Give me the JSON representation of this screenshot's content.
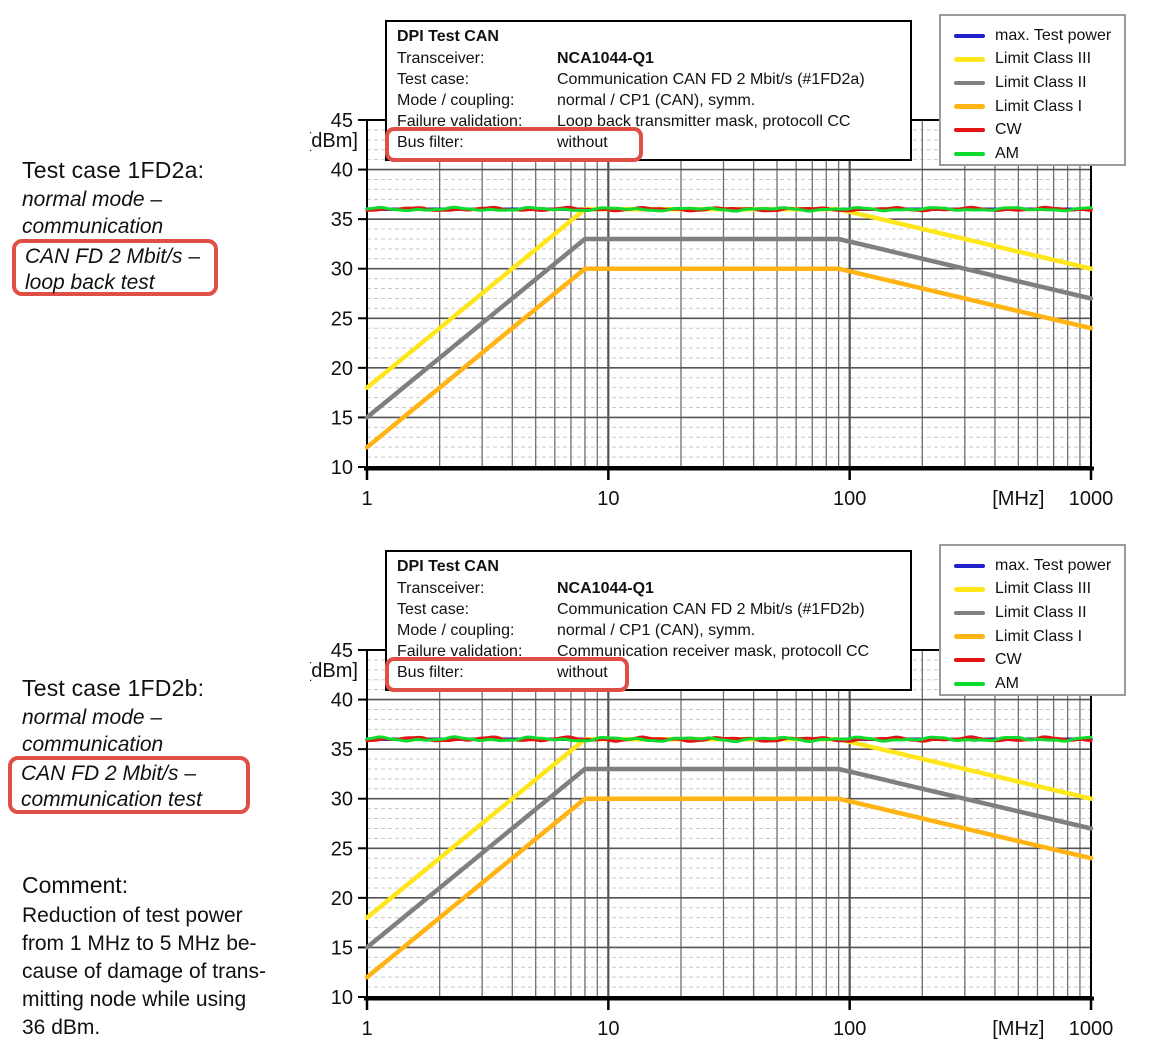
{
  "colors": {
    "highlight_box": "#e04f46",
    "info_border": "#000000",
    "legend_border": "#9b9b9b"
  },
  "annotations": {
    "block1": {
      "title": "Test case 1FD2a:",
      "lines": [
        "normal mode –",
        "communication"
      ],
      "boxed_lines": [
        "CAN FD 2 Mbit/s –",
        "loop back test"
      ]
    },
    "block2": {
      "title": "Test case 1FD2b:",
      "lines": [
        "normal mode –",
        "communication"
      ],
      "boxed_lines": [
        "CAN FD 2 Mbit/s –",
        "communication test"
      ]
    },
    "comment": {
      "title": "Comment:",
      "lines": [
        "Reduction of test power",
        "from 1 MHz to 5 MHz be-",
        "cause of damage of trans-",
        "mitting node while using",
        "36 dBm."
      ]
    }
  },
  "info_boxes": [
    {
      "title": "DPI Test CAN",
      "rows": [
        {
          "label": "Transceiver:",
          "value": "NCA1044-Q1"
        },
        {
          "label": "Test case:",
          "value": "Communication CAN FD 2 Mbit/s (#1FD2a)"
        },
        {
          "label": "Mode / coupling:",
          "value": "normal / CP1 (CAN), symm."
        },
        {
          "label": "Failure validation:",
          "value": "Loop back transmitter mask, protocoll CC"
        },
        {
          "label": "Bus filter:",
          "value": "without"
        }
      ]
    },
    {
      "title": "DPI Test CAN",
      "rows": [
        {
          "label": "Transceiver:",
          "value": "NCA1044-Q1"
        },
        {
          "label": "Test case:",
          "value": "Communication CAN FD 2 Mbit/s (#1FD2b)"
        },
        {
          "label": "Mode / coupling:",
          "value": "normal / CP1 (CAN), symm."
        },
        {
          "label": "Failure validation:",
          "value": "Communication receiver mask, protocoll CC"
        },
        {
          "label": "Bus filter:",
          "value": "without"
        }
      ]
    }
  ],
  "chart_data": [
    {
      "type": "line",
      "title": "DPI Test CAN – Test case 1FD2a (loop back test)",
      "x_axis": {
        "scale": "log",
        "min": 1,
        "max": 1000,
        "ticks": [
          1,
          10,
          100,
          1000
        ],
        "tick_labels": [
          "1",
          "10",
          "100",
          "1000"
        ],
        "unit_label": "[MHz]",
        "unit_label_at": 500
      },
      "y_axis": {
        "min": 10,
        "max": 45,
        "ticks": [
          45,
          40,
          35,
          30,
          25,
          20,
          15,
          10
        ],
        "unit_label": "[dBm]",
        "grid_major_step": 5,
        "grid_minor_step": 1
      },
      "legend": [
        {
          "label": "max. Test power",
          "color": "#2222cc"
        },
        {
          "label": "Limit Class III",
          "color": "#ffe61a"
        },
        {
          "label": "Limit Class II",
          "color": "#7f7f7f"
        },
        {
          "label": "Limit Class I",
          "color": "#ffb414"
        },
        {
          "label": "CW",
          "color": "#e31414"
        },
        {
          "label": "AM",
          "color": "#0fdb2e"
        }
      ],
      "series": [
        {
          "name": "max. Test power",
          "color": "#2222cc",
          "width": 3.5,
          "points": [
            [
              1,
              36
            ],
            [
              1000,
              36
            ]
          ],
          "noise": 0
        },
        {
          "name": "Limit Class III",
          "color": "#ffe61a",
          "width": 4.5,
          "points": [
            [
              1,
              18
            ],
            [
              8,
              36
            ],
            [
              90,
              36
            ],
            [
              1000,
              30
            ]
          ],
          "noise": 0
        },
        {
          "name": "Limit Class II",
          "color": "#7f7f7f",
          "width": 4.5,
          "points": [
            [
              1,
              15
            ],
            [
              8,
              33
            ],
            [
              90,
              33
            ],
            [
              1000,
              27
            ]
          ],
          "noise": 0
        },
        {
          "name": "Limit Class I",
          "color": "#ffb414",
          "width": 4.5,
          "points": [
            [
              1,
              12
            ],
            [
              8,
              30
            ],
            [
              90,
              30
            ],
            [
              1000,
              24
            ]
          ],
          "noise": 0
        },
        {
          "name": "CW",
          "color": "#e31414",
          "width": 3,
          "points": [
            [
              1,
              36
            ],
            [
              1000,
              36
            ]
          ],
          "noise": 0.2
        },
        {
          "name": "AM",
          "color": "#0fdb2e",
          "width": 3,
          "points": [
            [
              1,
              36
            ],
            [
              1000,
              36
            ]
          ],
          "noise": 0.2
        }
      ]
    },
    {
      "type": "line",
      "title": "DPI Test CAN – Test case 1FD2b (communication test)",
      "x_axis": {
        "scale": "log",
        "min": 1,
        "max": 1000,
        "ticks": [
          1,
          10,
          100,
          1000
        ],
        "tick_labels": [
          "1",
          "10",
          "100",
          "1000"
        ],
        "unit_label": "[MHz]",
        "unit_label_at": 500
      },
      "y_axis": {
        "min": 10,
        "max": 45,
        "ticks": [
          45,
          40,
          35,
          30,
          25,
          20,
          15,
          10
        ],
        "unit_label": "[dBm]",
        "grid_major_step": 5,
        "grid_minor_step": 1
      },
      "legend": [
        {
          "label": "max. Test power",
          "color": "#2222cc"
        },
        {
          "label": "Limit Class III",
          "color": "#ffe61a"
        },
        {
          "label": "Limit Class II",
          "color": "#7f7f7f"
        },
        {
          "label": "Limit Class I",
          "color": "#ffb414"
        },
        {
          "label": "CW",
          "color": "#e31414"
        },
        {
          "label": "AM",
          "color": "#0fdb2e"
        }
      ],
      "series": [
        {
          "name": "max. Test power",
          "color": "#2222cc",
          "width": 3.5,
          "points": [
            [
              1,
              36
            ],
            [
              1000,
              36
            ]
          ],
          "noise": 0
        },
        {
          "name": "Limit Class III",
          "color": "#ffe61a",
          "width": 4.5,
          "points": [
            [
              1,
              18
            ],
            [
              8,
              36
            ],
            [
              90,
              36
            ],
            [
              1000,
              30
            ]
          ],
          "noise": 0
        },
        {
          "name": "Limit Class II",
          "color": "#7f7f7f",
          "width": 4.5,
          "points": [
            [
              1,
              15
            ],
            [
              8,
              33
            ],
            [
              90,
              33
            ],
            [
              1000,
              27
            ]
          ],
          "noise": 0
        },
        {
          "name": "Limit Class I",
          "color": "#ffb414",
          "width": 4.5,
          "points": [
            [
              1,
              12
            ],
            [
              8,
              30
            ],
            [
              90,
              30
            ],
            [
              1000,
              24
            ]
          ],
          "noise": 0
        },
        {
          "name": "CW",
          "color": "#e31414",
          "width": 3,
          "points": [
            [
              1,
              36
            ],
            [
              1000,
              36
            ]
          ],
          "noise": 0.25
        },
        {
          "name": "AM",
          "color": "#0fdb2e",
          "width": 3,
          "points": [
            [
              1,
              36
            ],
            [
              1000,
              36
            ]
          ],
          "noise": 0.25
        }
      ]
    }
  ]
}
